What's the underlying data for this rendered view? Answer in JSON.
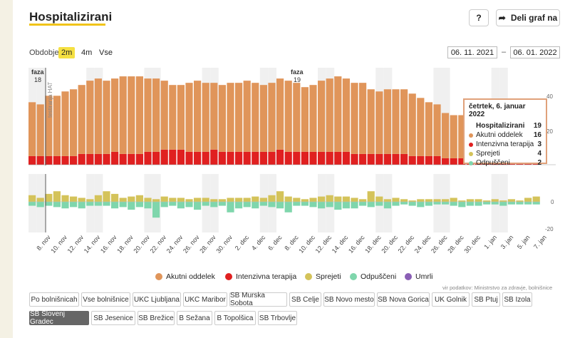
{
  "title": "Hospitalizirani",
  "help_label": "?",
  "share_label": "Deli graf na",
  "period": {
    "label": "Obdobje",
    "options": [
      "2m",
      "4m",
      "Vse"
    ],
    "selected": "2m"
  },
  "date_from": "06. 11. 2021",
  "date_to": "06. 01. 2022",
  "date_sep": "–",
  "phases": [
    {
      "name": "faza",
      "num": "18"
    },
    {
      "name": "faza",
      "num": "19"
    }
  ],
  "testing_note": "testiranja HAT",
  "y_upper_ticks": [
    "40",
    "20"
  ],
  "y_lower_ticks": [
    "0",
    "-20"
  ],
  "tooltip": {
    "date": "četrtek, 6. januar 2022",
    "total_label": "Hospitalizirani",
    "total_value": "19",
    "rows": [
      {
        "label": "Akutni oddelek",
        "value": "16",
        "color": "#e0955a"
      },
      {
        "label": "Intenzivna terapija",
        "value": "3",
        "color": "#e02020"
      },
      {
        "label": "Sprejeti",
        "value": "4",
        "color": "#d4c35a"
      },
      {
        "label": "Odpuščeni",
        "value": "2",
        "color": "#7fd6ac"
      }
    ]
  },
  "legend": [
    {
      "label": "Akutni oddelek",
      "color": "#e0955a"
    },
    {
      "label": "Intenzivna terapija",
      "color": "#e02020"
    },
    {
      "label": "Sprejeti",
      "color": "#d4c35a"
    },
    {
      "label": "Odpuščeni",
      "color": "#7fd6ac"
    },
    {
      "label": "Umrli",
      "color": "#8a5fb5"
    }
  ],
  "source": "vir podatkov: Ministrstvo za zdravje, bolnišnice",
  "hospitals": [
    [
      "Po bolnišnicah",
      "Vse bolnišnice",
      "UKC Ljubljana",
      "UKC Maribor",
      "SB Murska Sobota",
      "SB Celje",
      "SB Novo mesto",
      "SB Nova Gorica",
      "UK Golnik",
      "SB Ptuj",
      "SB Izola"
    ],
    [
      "SB Slovenj Gradec",
      "SB Jesenice",
      "SB Brežice",
      "B Sežana",
      "B Topolšica",
      "SB Trbovlje"
    ]
  ],
  "selected_hospital": "SB Slovenj Gradec",
  "chart_data": {
    "type": "bar",
    "x_tick_labels": [
      "8. nov",
      "10. nov",
      "12. nov",
      "14. nov",
      "16. nov",
      "18. nov",
      "20. nov",
      "22. nov",
      "24. nov",
      "26. nov",
      "28. nov",
      "30. nov",
      "2. dec",
      "4. dec",
      "6. dec",
      "8. dec",
      "10. dec",
      "12. dec",
      "14. dec",
      "16. dec",
      "18. dec",
      "20. dec",
      "22. dec",
      "24. dec",
      "26. dec",
      "28. dec",
      "30. dec",
      "1. jan",
      "3. jan",
      "5. jan",
      "7. jan"
    ],
    "dates": [
      "6.11",
      "7.11",
      "8.11",
      "9.11",
      "10.11",
      "11.11",
      "12.11",
      "13.11",
      "14.11",
      "15.11",
      "16.11",
      "17.11",
      "18.11",
      "19.11",
      "20.11",
      "21.11",
      "22.11",
      "23.11",
      "24.11",
      "25.11",
      "26.11",
      "27.11",
      "28.11",
      "29.11",
      "30.11",
      "1.12",
      "2.12",
      "3.12",
      "4.12",
      "5.12",
      "6.12",
      "7.12",
      "8.12",
      "9.12",
      "10.12",
      "11.12",
      "12.12",
      "13.12",
      "14.12",
      "15.12",
      "16.12",
      "17.12",
      "18.12",
      "19.12",
      "20.12",
      "21.12",
      "22.12",
      "23.12",
      "24.12",
      "25.12",
      "26.12",
      "27.12",
      "28.12",
      "29.12",
      "30.12",
      "31.12",
      "1.1",
      "2.1",
      "3.1",
      "4.1",
      "5.1",
      "6.1"
    ],
    "upper": {
      "ylim": [
        0,
        45
      ],
      "series": [
        {
          "name": "Intenzivna terapija",
          "values": [
            4,
            4,
            4,
            4,
            4,
            4,
            5,
            5,
            5,
            5,
            6,
            5,
            5,
            5,
            6,
            6,
            7,
            7,
            7,
            6,
            6,
            6,
            7,
            6,
            6,
            6,
            6,
            6,
            6,
            6,
            7,
            6,
            6,
            6,
            6,
            6,
            6,
            6,
            6,
            5,
            5,
            5,
            5,
            5,
            5,
            5,
            4,
            4,
            4,
            4,
            3,
            3,
            3,
            3,
            3,
            3,
            3,
            3,
            3,
            3,
            3,
            3
          ]
        },
        {
          "name": "Akutni oddelek",
          "values": [
            25,
            24,
            28,
            28,
            30,
            31,
            32,
            34,
            35,
            34,
            34,
            36,
            36,
            36,
            34,
            34,
            32,
            30,
            30,
            32,
            33,
            32,
            31,
            31,
            32,
            32,
            33,
            32,
            31,
            32,
            33,
            33,
            32,
            30,
            31,
            33,
            34,
            35,
            34,
            33,
            33,
            30,
            29,
            30,
            30,
            30,
            29,
            27,
            25,
            24,
            21,
            20,
            20,
            20,
            20,
            19,
            18,
            18,
            18,
            17,
            17,
            16
          ]
        }
      ]
    },
    "lower": {
      "ylim": [
        -20,
        10
      ],
      "series": [
        {
          "name": "Sprejeti",
          "values": [
            5,
            3,
            6,
            8,
            5,
            4,
            3,
            2,
            5,
            8,
            6,
            3,
            4,
            5,
            3,
            2,
            4,
            3,
            3,
            2,
            3,
            3,
            2,
            2,
            3,
            3,
            3,
            4,
            3,
            5,
            8,
            4,
            3,
            2,
            3,
            4,
            5,
            4,
            4,
            3,
            2,
            8,
            4,
            2,
            3,
            2,
            1,
            2,
            2,
            2,
            2,
            3,
            1,
            2,
            2,
            1,
            2,
            1,
            2,
            1,
            3,
            4
          ]
        },
        {
          "name": "Odpuščeni",
          "values": [
            -3,
            -4,
            -3,
            -4,
            -5,
            -4,
            -5,
            -3,
            -3,
            -3,
            -5,
            -4,
            -6,
            -4,
            -5,
            -12,
            -4,
            -3,
            -5,
            -4,
            -6,
            -3,
            -4,
            -3,
            -8,
            -5,
            -4,
            -5,
            -3,
            -4,
            -5,
            -8,
            -3,
            -3,
            -4,
            -5,
            -4,
            -6,
            -5,
            -5,
            -3,
            -4,
            -3,
            -5,
            -3,
            -2,
            -3,
            -4,
            -3,
            -2,
            -2,
            -3,
            -4,
            -3,
            -3,
            -2,
            -2,
            -3,
            -2,
            -2,
            -2,
            -2
          ]
        }
      ]
    }
  }
}
